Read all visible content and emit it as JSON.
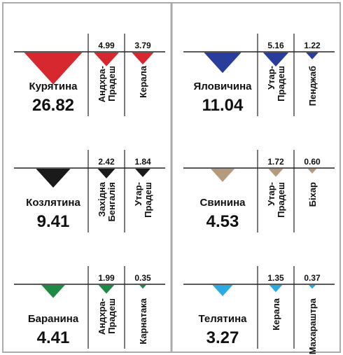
{
  "chart_data": {
    "type": "triangle-infographic",
    "panels": [
      {
        "name": "Курятина",
        "total": 26.82,
        "color": "#d7282f",
        "states": [
          {
            "name": [
              "Андхра-",
              "Прадеш"
            ],
            "value": 4.99
          },
          {
            "name": [
              "Керала"
            ],
            "value": 3.79
          }
        ]
      },
      {
        "name": "Яловичина",
        "total": 11.04,
        "color": "#2b3d9c",
        "states": [
          {
            "name": [
              "Утар-",
              "Прадеш"
            ],
            "value": 5.16
          },
          {
            "name": [
              "Пенджаб"
            ],
            "value": 1.22
          }
        ]
      },
      {
        "name": "Козлятина",
        "total": 9.41,
        "color": "#1a1a1a",
        "states": [
          {
            "name": [
              "Західна",
              "Бенгалія"
            ],
            "value": 2.42
          },
          {
            "name": [
              "Утар-",
              "Прадеш"
            ],
            "value": 1.84
          }
        ]
      },
      {
        "name": "Свинина",
        "total": 4.53,
        "color": "#b59a7e",
        "states": [
          {
            "name": [
              "Утар-",
              "Прадеш"
            ],
            "value": 1.72
          },
          {
            "name": [
              "Біхар"
            ],
            "value": 0.6,
            "value_label": "0.60"
          }
        ]
      },
      {
        "name": "Баранина",
        "total": 4.41,
        "color": "#1f8a45",
        "states": [
          {
            "name": [
              "Андхра-",
              "Прадеш"
            ],
            "value": 1.99
          },
          {
            "name": [
              "Карнатака"
            ],
            "value": 0.35
          }
        ]
      },
      {
        "name": "Телятина",
        "total": 3.27,
        "color": "#29abe2",
        "states": [
          {
            "name": [
              "Керала"
            ],
            "value": 1.35
          },
          {
            "name": [
              "Махараштра"
            ],
            "value": 0.37
          }
        ]
      }
    ]
  }
}
